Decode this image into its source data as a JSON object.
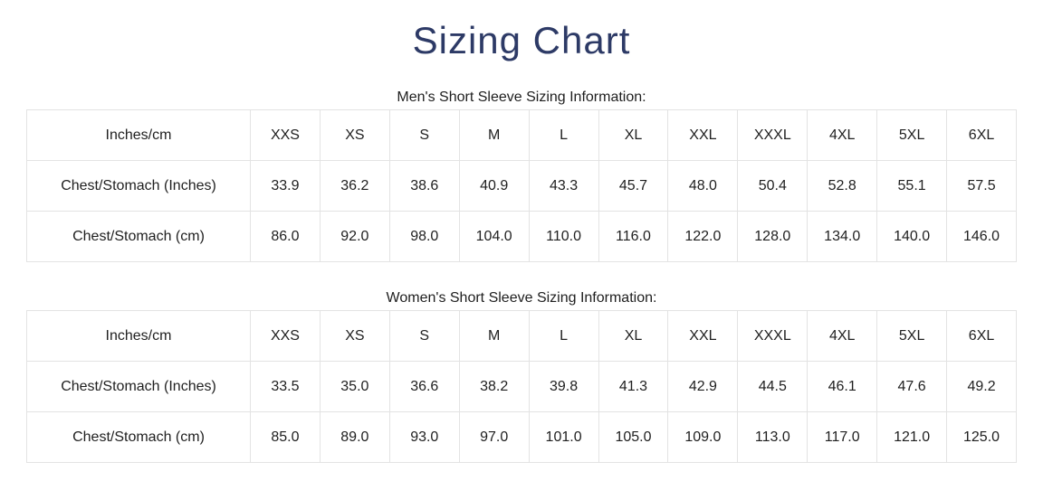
{
  "page": {
    "title": "Sizing Chart"
  },
  "colors": {
    "title_text": "#2d3a66",
    "body_text": "#1f1f1f",
    "table_border": "#e3e3e3",
    "background": "#ffffff"
  },
  "tables": [
    {
      "heading": "Men's Short Sleeve Sizing Information:",
      "columns": [
        "Inches/cm",
        "XXS",
        "XS",
        "S",
        "M",
        "L",
        "XL",
        "XXL",
        "XXXL",
        "4XL",
        "5XL",
        "6XL"
      ],
      "rows": [
        {
          "label": "Chest/Stomach (Inches)",
          "values": [
            "33.9",
            "36.2",
            "38.6",
            "40.9",
            "43.3",
            "45.7",
            "48.0",
            "50.4",
            "52.8",
            "55.1",
            "57.5"
          ]
        },
        {
          "label": "Chest/Stomach (cm)",
          "values": [
            "86.0",
            "92.0",
            "98.0",
            "104.0",
            "110.0",
            "116.0",
            "122.0",
            "128.0",
            "134.0",
            "140.0",
            "146.0"
          ]
        }
      ]
    },
    {
      "heading": "Women's Short Sleeve Sizing Information:",
      "columns": [
        "Inches/cm",
        "XXS",
        "XS",
        "S",
        "M",
        "L",
        "XL",
        "XXL",
        "XXXL",
        "4XL",
        "5XL",
        "6XL"
      ],
      "rows": [
        {
          "label": "Chest/Stomach (Inches)",
          "values": [
            "33.5",
            "35.0",
            "36.6",
            "38.2",
            "39.8",
            "41.3",
            "42.9",
            "44.5",
            "46.1",
            "47.6",
            "49.2"
          ]
        },
        {
          "label": "Chest/Stomach (cm)",
          "values": [
            "85.0",
            "89.0",
            "93.0",
            "97.0",
            "101.0",
            "105.0",
            "109.0",
            "113.0",
            "117.0",
            "121.0",
            "125.0"
          ]
        }
      ]
    }
  ]
}
